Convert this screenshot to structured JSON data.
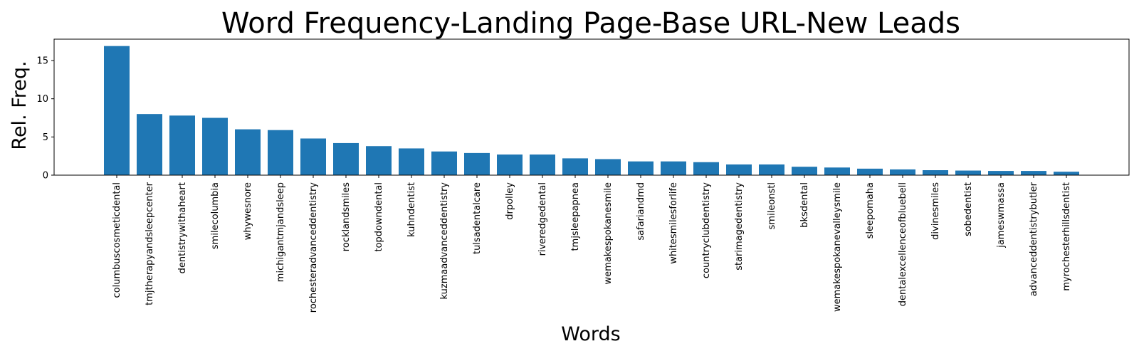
{
  "chart_data": {
    "type": "bar",
    "title": "Word Frequency-Landing Page-Base URL-New Leads",
    "xlabel": "Words",
    "ylabel": "Rel. Freq.",
    "ylim": [
      0,
      17.8
    ],
    "yticks": [
      0,
      5,
      10,
      15
    ],
    "grid": false,
    "bar_color": "#1f77b4",
    "categories": [
      "columbuscosmeticdental",
      "tmjtherapyandsleepcenter",
      "dentistrywithaheart",
      "smilecolumbia",
      "whywesnore",
      "michigantmjandsleep",
      "rochesteradvanceddentistry",
      "rocklandsmiles",
      "topdowndental",
      "kuhndentist",
      "kuzmaadvanceddentistry",
      "tulsadentalcare",
      "drpolley",
      "riveredgedental",
      "tmjsleepapnea",
      "wemakespokanesmile",
      "safariandmd",
      "whitesmilesforlife",
      "countryclubdentistry",
      "starimagedentistry",
      "smileonstl",
      "bksdental",
      "wemakespokanevalleysmile",
      "sleepomaha",
      "dentalexcellenceofbluebell",
      "divinesmiles",
      "sobedentist",
      "jameswmassa",
      "advanceddentistrybutler",
      "myrochesterhillsdentist"
    ],
    "values": [
      16.9,
      8.0,
      7.8,
      7.5,
      6.0,
      5.9,
      4.8,
      4.2,
      3.8,
      3.5,
      3.1,
      2.9,
      2.7,
      2.7,
      2.2,
      2.1,
      1.8,
      1.8,
      1.7,
      1.4,
      1.4,
      1.1,
      1.0,
      0.85,
      0.75,
      0.65,
      0.6,
      0.55,
      0.55,
      0.45
    ]
  }
}
